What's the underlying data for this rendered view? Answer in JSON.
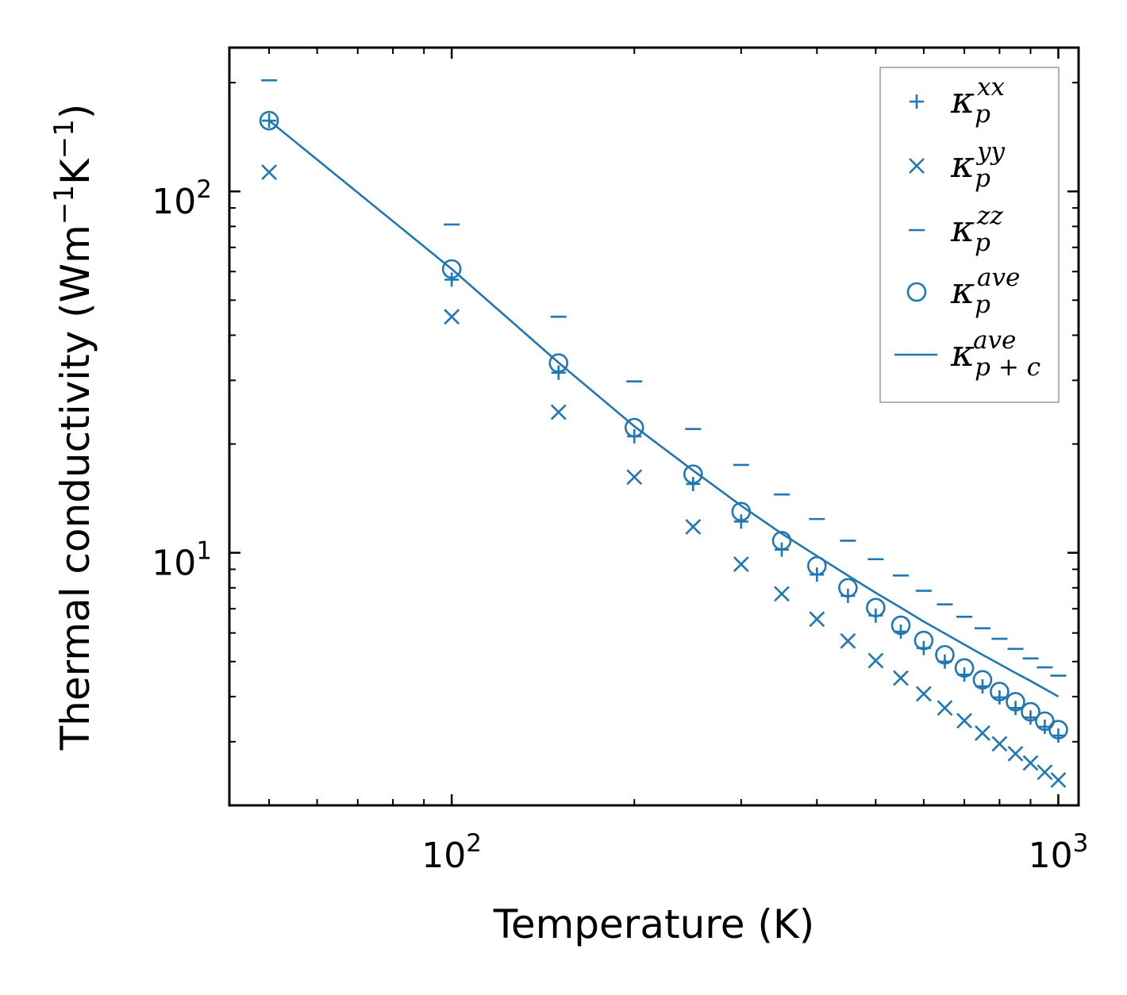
{
  "chart_data": {
    "type": "scatter",
    "title": "",
    "xlabel": "Temperature (K)",
    "ylabel": {
      "text": "Thermal conductivity (Wm",
      "exp1": "−1",
      "mid": "K",
      "exp2": "−1",
      "end": ")"
    },
    "xscale": "log",
    "yscale": "log",
    "xlim": [
      43,
      1080
    ],
    "ylim": [
      2.0,
      250
    ],
    "x_ticks": [
      {
        "value": 100,
        "base": "10",
        "exp": "2"
      },
      {
        "value": 1000,
        "base": "10",
        "exp": "3"
      }
    ],
    "y_ticks": [
      {
        "value": 10,
        "base": "10",
        "exp": "1"
      },
      {
        "value": 100,
        "base": "10",
        "exp": "2"
      }
    ],
    "grid": false,
    "legend_position": "top-right",
    "color": "#1f77b4",
    "x": [
      50,
      100,
      150,
      200,
      250,
      300,
      350,
      400,
      450,
      500,
      550,
      600,
      650,
      700,
      750,
      800,
      850,
      900,
      950,
      1000
    ],
    "series": [
      {
        "name": "kappa_p^xx",
        "legend": {
          "symbol": "κ",
          "sub": "p",
          "sup": "xx"
        },
        "marker": "plus",
        "values": [
          157,
          57,
          31.5,
          21,
          15.5,
          12.2,
          10.2,
          8.7,
          7.6,
          6.7,
          6.05,
          5.45,
          5.0,
          4.6,
          4.27,
          3.98,
          3.72,
          3.5,
          3.3,
          3.12
        ]
      },
      {
        "name": "kappa_p^yy",
        "legend": {
          "symbol": "κ",
          "sub": "p",
          "sup": "yy"
        },
        "marker": "cross",
        "values": [
          113,
          45,
          24.5,
          16.2,
          11.8,
          9.3,
          7.7,
          6.55,
          5.7,
          5.03,
          4.5,
          4.07,
          3.72,
          3.43,
          3.17,
          2.96,
          2.78,
          2.62,
          2.47,
          2.35
        ]
      },
      {
        "name": "kappa_p^zz",
        "legend": {
          "symbol": "κ",
          "sub": "p",
          "sup": "zz"
        },
        "marker": "dash",
        "values": [
          203,
          81,
          45,
          29.8,
          22,
          17.5,
          14.5,
          12.4,
          10.8,
          9.6,
          8.65,
          7.85,
          7.2,
          6.65,
          6.18,
          5.78,
          5.42,
          5.1,
          4.82,
          4.57
        ]
      },
      {
        "name": "kappa_p^ave",
        "legend": {
          "symbol": "κ",
          "sub": "p",
          "sup": "ave"
        },
        "marker": "circle",
        "values": [
          157,
          61,
          33.5,
          22.2,
          16.5,
          13,
          10.8,
          9.2,
          8.0,
          7.05,
          6.3,
          5.72,
          5.22,
          4.8,
          4.45,
          4.13,
          3.87,
          3.63,
          3.42,
          3.24
        ]
      },
      {
        "name": "kappa_p+c^ave",
        "legend": {
          "symbol": "κ",
          "sub": "p + c",
          "sup": "ave"
        },
        "marker": "line",
        "values": [
          157,
          61,
          33.6,
          22.4,
          16.9,
          13.5,
          11.3,
          9.8,
          8.65,
          7.75,
          7.05,
          6.45,
          5.98,
          5.57,
          5.22,
          4.92,
          4.65,
          4.42,
          4.2,
          4.0
        ]
      }
    ]
  }
}
